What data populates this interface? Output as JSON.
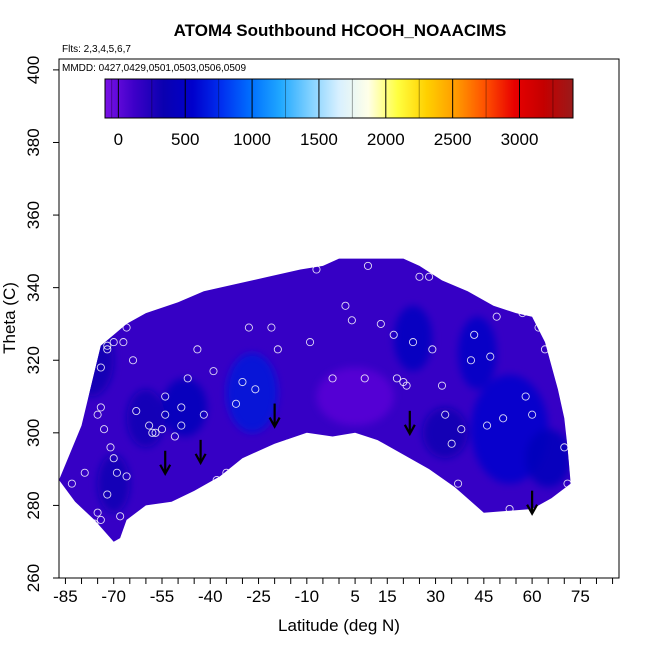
{
  "chart_data": {
    "type": "heatmap",
    "title": "ATOM4 Southbound HCOOH_NOAACIMS",
    "flights_note": "Flts: 2,3,4,5,6,7",
    "dates_note": "MMDD: 0427,0429,0501,0503,0506,0509",
    "xlabel": "Latitude (deg N)",
    "ylabel": "Theta (C)",
    "xlim": [
      -87,
      87
    ],
    "ylim": [
      260,
      403
    ],
    "x_tick_labels": [
      -85,
      -70,
      -55,
      -40,
      -25,
      -10,
      5,
      15,
      30,
      45,
      60,
      75
    ],
    "y_tick_labels": [
      260,
      280,
      300,
      320,
      340,
      360,
      380,
      400
    ],
    "grid": false,
    "colorbar": {
      "min": -100,
      "max": 3400,
      "tick_labels": [
        0,
        500,
        1000,
        1500,
        2000,
        2500,
        3000
      ],
      "colors": [
        "#7a10e6",
        "#3d00c8",
        "#0a00b0",
        "#0000cc",
        "#0030f0",
        "#0070ff",
        "#20a8ff",
        "#7fd0ff",
        "#d8f0ff",
        "#ffffe8",
        "#ffff40",
        "#ffd000",
        "#ff9a00",
        "#ff5000",
        "#e80000",
        "#c40000",
        "#9a1a1a"
      ]
    },
    "field": {
      "background_value": 150,
      "upper_boundary": [
        [
          -87,
          287
        ],
        [
          -80,
          302
        ],
        [
          -74,
          324
        ],
        [
          -66,
          330
        ],
        [
          -60,
          333
        ],
        [
          -50,
          336
        ],
        [
          -42,
          339
        ],
        [
          -32,
          341
        ],
        [
          -22,
          343
        ],
        [
          -12,
          345
        ],
        [
          -5,
          346
        ],
        [
          0,
          348
        ],
        [
          10,
          348
        ],
        [
          20,
          348
        ],
        [
          25,
          346
        ],
        [
          32,
          342
        ],
        [
          40,
          339
        ],
        [
          48,
          335
        ],
        [
          55,
          333
        ],
        [
          60,
          332
        ],
        [
          64,
          325
        ],
        [
          68,
          312
        ],
        [
          70,
          304
        ],
        [
          71,
          296
        ],
        [
          72,
          286
        ]
      ],
      "lower_boundary": [
        [
          72,
          286
        ],
        [
          66,
          282
        ],
        [
          60,
          279
        ],
        [
          45,
          278
        ],
        [
          36,
          285
        ],
        [
          28,
          290
        ],
        [
          20,
          294
        ],
        [
          12,
          298
        ],
        [
          5,
          300
        ],
        [
          -2,
          299
        ],
        [
          -10,
          300
        ],
        [
          -20,
          297
        ],
        [
          -30,
          293
        ],
        [
          -37,
          288
        ],
        [
          -45,
          284
        ],
        [
          -52,
          281
        ],
        [
          -60,
          280
        ],
        [
          -66,
          276
        ],
        [
          -68,
          271
        ],
        [
          -70,
          270
        ],
        [
          -76,
          276
        ],
        [
          -82,
          281
        ],
        [
          -87,
          287
        ]
      ],
      "features": [
        {
          "center": [
            -27,
            311
          ],
          "radius": [
            8,
            11
          ],
          "value": 650
        },
        {
          "center": [
            -48,
            307
          ],
          "radius": [
            7,
            8
          ],
          "value": 420
        },
        {
          "center": [
            -60,
            304
          ],
          "radius": [
            6,
            8
          ],
          "value": 380
        },
        {
          "center": [
            -77,
            320
          ],
          "radius": [
            7,
            10
          ],
          "value": 330
        },
        {
          "center": [
            23,
            326
          ],
          "radius": [
            6,
            9
          ],
          "value": 470
        },
        {
          "center": [
            43,
            322
          ],
          "radius": [
            6,
            10
          ],
          "value": 520
        },
        {
          "center": [
            53,
            301
          ],
          "radius": [
            12,
            15
          ],
          "value": 560
        },
        {
          "center": [
            33,
            300
          ],
          "radius": [
            7,
            7
          ],
          "value": 360
        },
        {
          "center": [
            -70,
            286
          ],
          "radius": [
            5,
            8
          ],
          "value": 300
        },
        {
          "center": [
            65,
            293
          ],
          "radius": [
            7,
            8
          ],
          "value": 420
        },
        {
          "center": [
            5,
            310
          ],
          "radius": [
            12,
            8
          ],
          "value": 20
        }
      ]
    },
    "observations": [
      [
        -83,
        286
      ],
      [
        -79,
        289
      ],
      [
        -76,
        275
      ],
      [
        -75,
        278
      ],
      [
        -74,
        276
      ],
      [
        -73,
        270
      ],
      [
        -72,
        283
      ],
      [
        -70,
        293
      ],
      [
        -69,
        289
      ],
      [
        -68,
        277
      ],
      [
        -71,
        296
      ],
      [
        -66,
        288
      ],
      [
        -75,
        305
      ],
      [
        -74,
        307
      ],
      [
        -73,
        301
      ],
      [
        -74,
        318
      ],
      [
        -72,
        323
      ],
      [
        -72,
        324
      ],
      [
        -70,
        325
      ],
      [
        -67,
        325
      ],
      [
        -66,
        329
      ],
      [
        -64,
        320
      ],
      [
        -63,
        306
      ],
      [
        -59,
        302
      ],
      [
        -58,
        300
      ],
      [
        -57,
        300
      ],
      [
        -55,
        301
      ],
      [
        -54,
        305
      ],
      [
        -54,
        310
      ],
      [
        -51,
        299
      ],
      [
        -49,
        302
      ],
      [
        -49,
        307
      ],
      [
        -47,
        315
      ],
      [
        -44,
        323
      ],
      [
        -42,
        305
      ],
      [
        -39,
        317
      ],
      [
        -38,
        287
      ],
      [
        -35,
        289
      ],
      [
        -32,
        308
      ],
      [
        -30,
        314
      ],
      [
        -28,
        329
      ],
      [
        -26,
        312
      ],
      [
        -24,
        293
      ],
      [
        -21,
        329
      ],
      [
        -19,
        323
      ],
      [
        -16,
        297
      ],
      [
        -9,
        325
      ],
      [
        -2,
        315
      ],
      [
        -7,
        345
      ],
      [
        2,
        335
      ],
      [
        4,
        331
      ],
      [
        8,
        315
      ],
      [
        9,
        346
      ],
      [
        13,
        330
      ],
      [
        17,
        327
      ],
      [
        18,
        315
      ],
      [
        20,
        314
      ],
      [
        21,
        313
      ],
      [
        23,
        325
      ],
      [
        25,
        343
      ],
      [
        28,
        343
      ],
      [
        29,
        323
      ],
      [
        32,
        313
      ],
      [
        33,
        305
      ],
      [
        35,
        297
      ],
      [
        37,
        286
      ],
      [
        38,
        301
      ],
      [
        41,
        320
      ],
      [
        42,
        327
      ],
      [
        46,
        302
      ],
      [
        47,
        321
      ],
      [
        49,
        332
      ],
      [
        51,
        304
      ],
      [
        53,
        279
      ],
      [
        57,
        333
      ],
      [
        58,
        310
      ],
      [
        60,
        305
      ],
      [
        62,
        329
      ],
      [
        64,
        323
      ],
      [
        70,
        296
      ],
      [
        71,
        286
      ]
    ],
    "arrows": [
      [
        -54,
        289
      ],
      [
        -43,
        292
      ],
      [
        -20,
        302
      ],
      [
        22,
        300
      ],
      [
        60,
        278
      ]
    ]
  }
}
